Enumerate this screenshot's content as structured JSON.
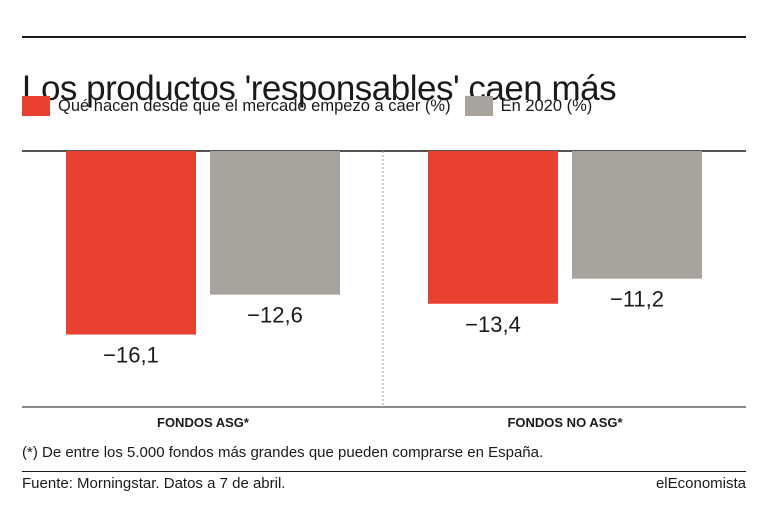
{
  "chart_data": {
    "type": "bar",
    "title": "Los productos 'responsables' caen más",
    "categories": [
      "FONDOS ASG*",
      "FONDOS NO ASG*"
    ],
    "series": [
      {
        "name": "Qué hacen desde que el mercado empezó a caer (%)",
        "color": "#e8412f",
        "values": [
          -16.1,
          -13.4
        ]
      },
      {
        "name": "En 2020 (%)",
        "color": "#a8a49d",
        "values": [
          -12.6,
          -11.2
        ]
      }
    ],
    "value_labels": [
      [
        "−16,1",
        "−13,4"
      ],
      [
        "−12,6",
        "−11,2"
      ]
    ],
    "ylim": [
      -20,
      0
    ],
    "legend_position": "top",
    "grid": false
  },
  "footnote": "(*) De entre los 5.000 fondos más grandes que pueden comprarse en España.",
  "source": "Fuente: Morningstar. Datos a 7 de abril.",
  "brand": "elEconomista"
}
